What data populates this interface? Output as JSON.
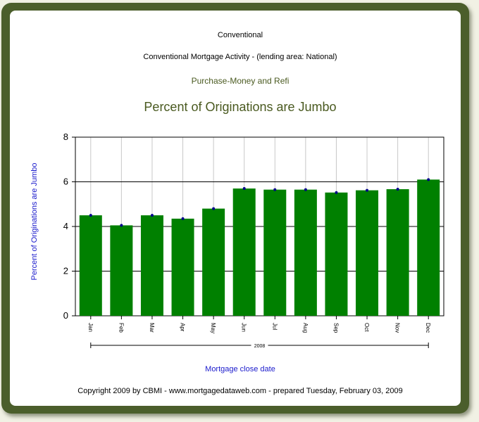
{
  "header": {
    "line1": "Conventional",
    "line2": "Conventional Mortgage Activity - (lending area: National)",
    "line3": "Purchase-Money and Refi"
  },
  "footer": {
    "copyright": "Copyright 2009 by CBMI - www.mortgagedataweb.com - prepared Tuesday, February 03, 2009"
  },
  "colors": {
    "frame": "#4b5e2b",
    "bar": "#008000",
    "title": "#4a5a20",
    "subtitle": "#4a5a20",
    "axis_label": "#1a1acc",
    "marker": "#00008b"
  },
  "chart_data": {
    "type": "bar",
    "title": "Percent of Originations are Jumbo",
    "xlabel": "Mortgage close date",
    "ylabel": "Percent of Originations are Jumbo",
    "x_group_label": "2008",
    "categories": [
      "Jan",
      "Feb",
      "Mar",
      "Apr",
      "May",
      "Jun",
      "Jul",
      "Aug",
      "Sep",
      "Oct",
      "Nov",
      "Dec"
    ],
    "values": [
      4.5,
      4.05,
      4.5,
      4.35,
      4.8,
      5.7,
      5.65,
      5.65,
      5.52,
      5.62,
      5.67,
      6.1
    ],
    "ylim": [
      0,
      8
    ],
    "yticks": [
      0,
      2,
      4,
      6,
      8
    ],
    "grid": true,
    "legend": "none"
  }
}
